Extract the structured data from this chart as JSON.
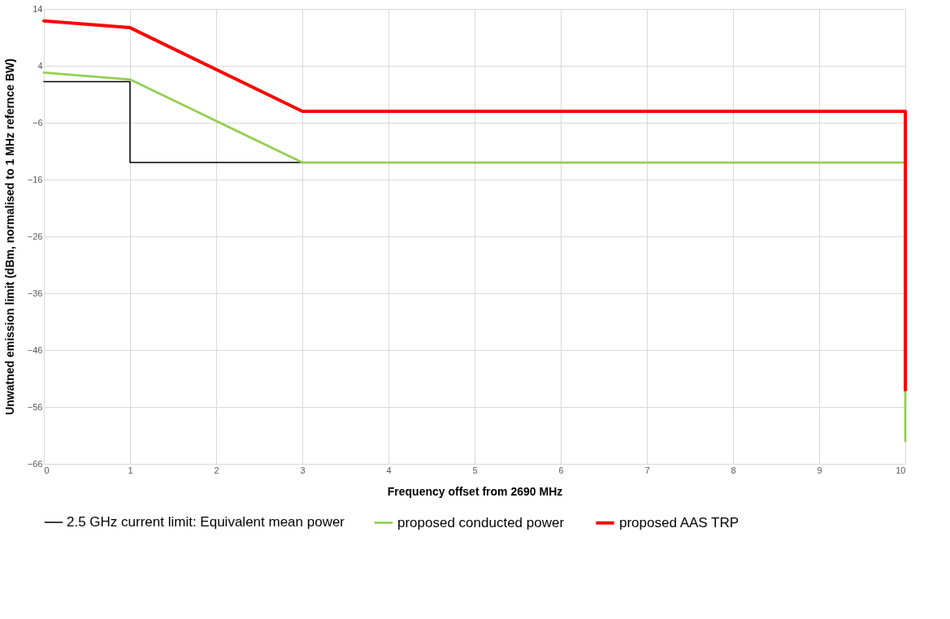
{
  "chart_data": {
    "type": "line",
    "xlabel": "Frequency offset from 2690 MHz",
    "ylabel": "Unwatned emission limit (dBm, normalised to 1 MHz refernce BW)",
    "xlim": [
      0,
      10
    ],
    "xticks": [
      0,
      1,
      2,
      3,
      4,
      5,
      6,
      7,
      8,
      9,
      10
    ],
    "ylim": [
      -66,
      14
    ],
    "yticks": [
      -66,
      -56,
      -46,
      -36,
      -26,
      -16,
      -6,
      4,
      14
    ],
    "grid": true,
    "legend": "bottom",
    "marker": "none",
    "line_style": "solid",
    "series": [
      {
        "name": "2.5 GHz current limit: Equivalent mean power",
        "color": "#000000",
        "x": [
          0,
          1,
          1,
          3
        ],
        "values": [
          1.2,
          1.2,
          -13,
          -13
        ]
      },
      {
        "name": "proposed conducted power",
        "color": "#92d050",
        "x": [
          0,
          1,
          3,
          10,
          10
        ],
        "values": [
          2.8,
          1.6,
          -13,
          -13,
          -62
        ]
      },
      {
        "name": "proposed AAS TRP",
        "color": "#ff0000",
        "x": [
          0,
          1,
          3,
          10,
          10
        ],
        "values": [
          11.9,
          10.7,
          -4,
          -4,
          -53
        ]
      }
    ]
  }
}
